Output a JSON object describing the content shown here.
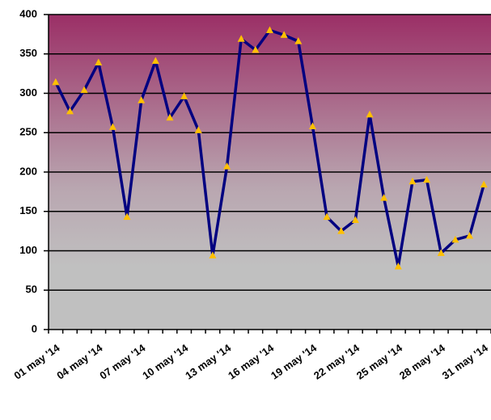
{
  "chart_data": {
    "type": "line",
    "categories": [
      "01 may '14",
      null,
      null,
      "04 may '14",
      null,
      null,
      "07 may '14",
      null,
      null,
      "10 may '14",
      null,
      null,
      "13 may '14",
      null,
      null,
      "16 may '14",
      null,
      null,
      "19 may '14",
      null,
      null,
      "22 may '14",
      null,
      null,
      "25 may '14",
      null,
      null,
      "28 may '14",
      null,
      null,
      "31 may '14"
    ],
    "values": [
      314,
      277,
      304,
      339,
      257,
      143,
      291,
      341,
      269,
      296,
      253,
      94,
      207,
      369,
      355,
      380,
      374,
      366,
      258,
      143,
      125,
      139,
      273,
      167,
      80,
      188,
      190,
      97,
      114,
      119,
      184
    ],
    "color": "#000080",
    "marker_color": "#ffc000",
    "ylim": [
      0,
      400
    ],
    "yticks": [
      0,
      50,
      100,
      150,
      200,
      250,
      300,
      350,
      400
    ],
    "grid": true
  }
}
